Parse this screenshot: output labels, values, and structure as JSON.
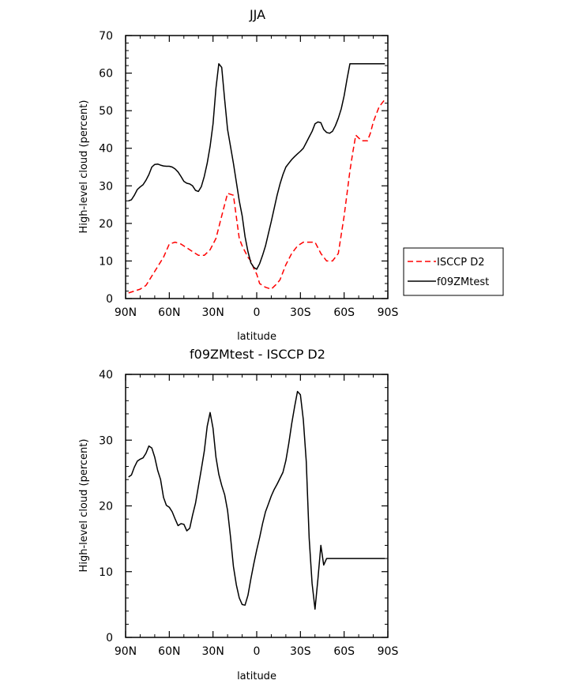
{
  "chart_data": [
    {
      "type": "line",
      "title": "JJA",
      "xlabel": "latitude",
      "ylabel": "High-level cloud (percent)",
      "xlim": [
        90,
        -90
      ],
      "ylim": [
        0,
        70
      ],
      "xticks": [
        90,
        60,
        30,
        0,
        -30,
        -60,
        -90
      ],
      "xtick_labels": [
        "90N",
        "60N",
        "30N",
        "0",
        "30S",
        "60S",
        "90S"
      ],
      "yticks": [
        0,
        10,
        20,
        30,
        40,
        50,
        60,
        70
      ],
      "ytick_labels": [
        "0",
        "10",
        "20",
        "30",
        "40",
        "50",
        "60",
        "70"
      ],
      "legend_position": "outside-right",
      "series": [
        {
          "name": "ISCCP D2",
          "color": "#ff0000",
          "dash": "dashed",
          "x": [
            88,
            84,
            80,
            76,
            72,
            68,
            64,
            60,
            56,
            52,
            48,
            44,
            40,
            36,
            32,
            28,
            24,
            20,
            16,
            12,
            10,
            8,
            6,
            4,
            2,
            0,
            -2,
            -6,
            -10,
            -14,
            -16,
            -18,
            -20,
            -24,
            -28,
            -32,
            -36,
            -40,
            -44,
            -48,
            -52,
            -56,
            -60,
            -64,
            -66,
            -68,
            -72,
            -76,
            -78,
            -80,
            -82,
            -84,
            -86,
            -88
          ],
          "y": [
            1.5,
            2,
            2.5,
            3.5,
            6,
            8.5,
            11,
            14.5,
            15,
            14.5,
            13.5,
            12.5,
            11.5,
            11.5,
            13,
            16,
            22,
            28,
            27.5,
            16,
            14,
            12.5,
            11,
            10,
            8,
            6.5,
            4,
            3,
            2.5,
            4,
            5,
            7,
            9,
            12,
            14,
            15,
            15,
            15,
            12,
            10,
            10,
            12,
            22,
            34,
            39,
            43.5,
            42,
            42,
            44,
            47,
            49,
            51,
            52,
            53
          ]
        },
        {
          "name": "f09ZMtest",
          "color": "#000000",
          "dash": "solid",
          "x": [
            88,
            86,
            84,
            82,
            80,
            78,
            76,
            74,
            72,
            70,
            68,
            66,
            64,
            62,
            60,
            58,
            56,
            54,
            52,
            50,
            48,
            46,
            44,
            42,
            40,
            38,
            36,
            34,
            32,
            30,
            28,
            26,
            24,
            22,
            20,
            18,
            16,
            14,
            12,
            10,
            8,
            6,
            4,
            2,
            0,
            -2,
            -4,
            -6,
            -8,
            -10,
            -12,
            -14,
            -16,
            -18,
            -20,
            -22,
            -24,
            -26,
            -28,
            -30,
            -32,
            -34,
            -36,
            -38,
            -40,
            -42,
            -44,
            -46,
            -48,
            -50,
            -52,
            -54,
            -56,
            -58,
            -60,
            -62,
            -64,
            -66,
            -68,
            -70,
            -72,
            -74,
            -76,
            -78,
            -80,
            -82,
            -84,
            -86,
            -88
          ],
          "y": [
            26,
            26.3,
            27.5,
            29,
            29.7,
            30.3,
            31.5,
            33,
            35,
            35.7,
            35.8,
            35.5,
            35.3,
            35.2,
            35.2,
            35,
            34.5,
            33.7,
            32.5,
            31.2,
            30.7,
            30.5,
            30,
            28.8,
            28.5,
            29.8,
            32.5,
            36,
            40.5,
            46.5,
            56,
            62.5,
            61.5,
            53,
            45,
            40.5,
            36,
            31,
            26,
            22,
            16.5,
            12.5,
            9.5,
            8.3,
            7.8,
            9.3,
            11.5,
            14,
            17.3,
            20.5,
            24,
            27.5,
            30.5,
            33,
            35,
            36,
            37,
            37.8,
            38.5,
            39.2,
            40,
            41.5,
            43,
            44.5,
            46.5,
            47,
            46.8,
            45,
            44.2,
            44,
            44.5,
            46,
            48,
            50.5,
            54,
            58.5,
            62.5,
            62.5,
            62.5,
            62.5,
            62.5,
            62.5,
            62.5,
            62.5,
            62.5,
            62.5,
            62.5,
            62.5,
            62.5
          ]
        }
      ]
    },
    {
      "type": "line",
      "title": "f09ZMtest - ISCCP D2",
      "xlabel": "latitude",
      "ylabel": "High-level cloud (percent)",
      "xlim": [
        90,
        -90
      ],
      "ylim": [
        0,
        40
      ],
      "xticks": [
        90,
        60,
        30,
        0,
        -30,
        -60,
        -90
      ],
      "xtick_labels": [
        "90N",
        "60N",
        "30N",
        "0",
        "30S",
        "60S",
        "90S"
      ],
      "yticks": [
        0,
        10,
        20,
        30,
        40
      ],
      "ytick_labels": [
        "0",
        "10",
        "20",
        "30",
        "40"
      ],
      "series": [
        {
          "name": "",
          "color": "#000000",
          "dash": "solid",
          "x": [
            88,
            86,
            84,
            82,
            80,
            78,
            76,
            74,
            72,
            70,
            68,
            66,
            64,
            62,
            60,
            58,
            56,
            54,
            52,
            50,
            48,
            46,
            44,
            42,
            40,
            38,
            36,
            34,
            32,
            30,
            28,
            26,
            24,
            22,
            20,
            18,
            16,
            14,
            12,
            10,
            8,
            6,
            4,
            2,
            0,
            -2,
            -4,
            -6,
            -8,
            -10,
            -12,
            -14,
            -16,
            -18,
            -20,
            -22,
            -24,
            -26,
            -28,
            -30,
            -32,
            -34,
            -36,
            -38,
            -40,
            -42,
            -44,
            -46,
            -48,
            -50,
            -52,
            -54,
            -56,
            -58,
            -60,
            -62,
            -64,
            -66,
            -68,
            -70,
            -72,
            -74,
            -76,
            -78,
            -80,
            -82,
            -84,
            -86,
            -88
          ],
          "y": [
            24.4,
            24.7,
            25.9,
            26.8,
            27.1,
            27.3,
            28.0,
            29.1,
            28.8,
            27.4,
            25.4,
            24.0,
            21.3,
            20.1,
            19.8,
            19.1,
            18.0,
            17.0,
            17.3,
            17.2,
            16.2,
            16.6,
            18.6,
            20.4,
            23.0,
            25.6,
            28.3,
            32.1,
            34.2,
            31.8,
            27.4,
            24.8,
            23.1,
            21.7,
            19.3,
            15.3,
            10.8,
            8.0,
            6.0,
            5.0,
            4.9,
            6.4,
            8.9,
            11.2,
            13.3,
            15.2,
            17.3,
            19.1,
            20.3,
            21.5,
            22.5,
            23.3,
            24.2,
            25.1,
            26.9,
            29.5,
            32.5,
            35.1,
            37.4,
            36.9,
            33.1,
            26.8,
            15.1,
            8.2,
            4.3,
            8.9,
            14.0,
            11.0,
            12.0,
            12.0,
            12.0,
            12.0,
            12.0,
            12.0,
            12.0,
            12.0,
            12.0,
            12.0,
            12.0,
            12.0,
            12.0,
            12.0,
            12.0,
            12.0,
            12.0,
            12.0,
            12.0,
            12.0,
            12.0
          ],
          "_trim": true
        }
      ]
    }
  ]
}
